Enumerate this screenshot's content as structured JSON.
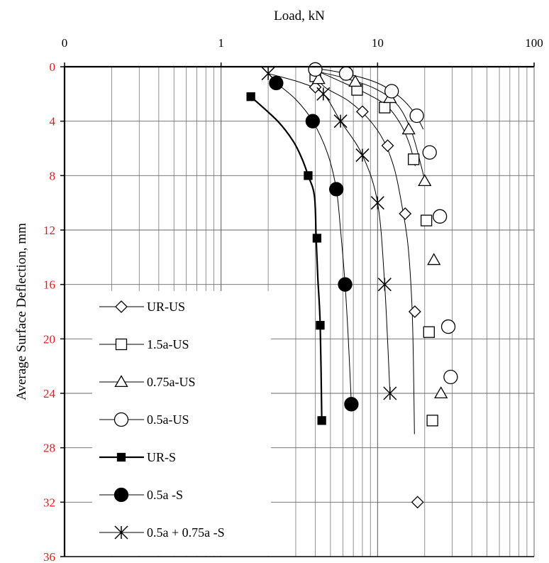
{
  "chart_data": {
    "type": "scatter",
    "title": "",
    "xlabel": "Load, kN",
    "ylabel": "Average Surface Deflection, mm",
    "x_scale": "log",
    "xlim": [
      0.1,
      100
    ],
    "ylim": [
      0,
      36
    ],
    "y_inverted": true,
    "x_position": "top",
    "x_tick_labels": [
      "0",
      "1",
      "10",
      "100"
    ],
    "y_ticks": [
      0,
      4,
      8,
      12,
      16,
      20,
      24,
      28,
      32,
      36
    ],
    "y_tick_color": "#e8141c",
    "grid": true,
    "legend_position": "bottom-left",
    "series": [
      {
        "name": "UR-US",
        "marker": "diamond",
        "filled": false,
        "line": "thin",
        "points": [
          [
            4.0,
            1.5
          ],
          [
            8.0,
            3.3
          ],
          [
            11.6,
            5.8
          ],
          [
            15.0,
            10.8
          ],
          [
            17.3,
            18.0
          ],
          [
            18.0,
            32.0
          ]
        ],
        "curve": [
          [
            3.9,
            0.5
          ],
          [
            4.6,
            1.5
          ],
          [
            6.5,
            2.5
          ],
          [
            8.7,
            3.8
          ],
          [
            10.9,
            5.4
          ],
          [
            12.8,
            7.5
          ],
          [
            14.2,
            10.0
          ],
          [
            15.6,
            13.0
          ],
          [
            16.5,
            17.0
          ],
          [
            16.9,
            21.0
          ],
          [
            17.2,
            27.0
          ]
        ]
      },
      {
        "name": "1.5a-US",
        "marker": "square",
        "filled": false,
        "line": "thin",
        "points": [
          [
            4.0,
            0.7
          ],
          [
            7.4,
            1.7
          ],
          [
            11.1,
            3.0
          ],
          [
            17.0,
            6.8
          ],
          [
            20.5,
            11.3
          ],
          [
            21.3,
            19.5
          ],
          [
            22.4,
            26.0
          ]
        ],
        "curve": [
          [
            3.9,
            0.2
          ],
          [
            5.6,
            1.0
          ],
          [
            8.6,
            2.0
          ],
          [
            11.5,
            2.9
          ],
          [
            14.0,
            4.2
          ],
          [
            16.0,
            5.7
          ],
          [
            17.4,
            7.3
          ]
        ]
      },
      {
        "name": "0.75a-US",
        "marker": "triangle",
        "filled": false,
        "line": "thin",
        "points": [
          [
            4.2,
            0.9
          ],
          [
            7.2,
            1.1
          ],
          [
            12.0,
            2.3
          ],
          [
            15.8,
            4.6
          ],
          [
            20.0,
            8.4
          ],
          [
            22.9,
            14.2
          ],
          [
            25.4,
            24.0
          ]
        ],
        "curve": [
          [
            3.9,
            0.3
          ],
          [
            6.0,
            0.8
          ],
          [
            9.6,
            1.6
          ],
          [
            13.4,
            2.8
          ],
          [
            16.5,
            4.8
          ],
          [
            19.0,
            7.3
          ],
          [
            20.3,
            8.7
          ]
        ]
      },
      {
        "name": "0.5a-US",
        "marker": "circle",
        "filled": false,
        "line": "thin",
        "points": [
          [
            4.0,
            0.2
          ],
          [
            6.3,
            0.5
          ],
          [
            12.3,
            1.8
          ],
          [
            17.8,
            3.6
          ],
          [
            21.5,
            6.3
          ],
          [
            25.0,
            11.0
          ],
          [
            28.3,
            19.1
          ],
          [
            29.3,
            22.8
          ]
        ],
        "curve": [
          [
            3.9,
            0.1
          ],
          [
            6.3,
            0.5
          ],
          [
            10.0,
            1.2
          ],
          [
            13.8,
            2.2
          ],
          [
            17.2,
            3.4
          ],
          [
            19.6,
            4.6
          ]
        ]
      },
      {
        "name": "UR-S",
        "marker": "square",
        "filled": true,
        "line": "thick",
        "points": [
          [
            1.55,
            2.2
          ],
          [
            3.6,
            8.0
          ],
          [
            4.1,
            12.6
          ],
          [
            4.3,
            19.0
          ],
          [
            4.4,
            26.0
          ]
        ],
        "curve": [
          [
            1.55,
            2.2
          ],
          [
            2.3,
            4.0
          ],
          [
            2.9,
            5.5
          ],
          [
            3.3,
            6.8
          ],
          [
            3.6,
            8.0
          ],
          [
            3.95,
            9.5
          ],
          [
            4.05,
            12.6
          ],
          [
            4.15,
            15.5
          ],
          [
            4.3,
            19.0
          ],
          [
            4.4,
            26.0
          ]
        ]
      },
      {
        "name": "0.5a -S",
        "marker": "circle",
        "filled": true,
        "line": "thin",
        "points": [
          [
            2.25,
            1.2
          ],
          [
            3.85,
            4.0
          ],
          [
            5.45,
            9.0
          ],
          [
            6.2,
            16.0
          ],
          [
            6.8,
            24.8
          ]
        ],
        "curve": [
          [
            2.25,
            1.2
          ],
          [
            3.0,
            2.4
          ],
          [
            3.85,
            4.0
          ],
          [
            4.8,
            6.4
          ],
          [
            5.45,
            9.0
          ],
          [
            5.8,
            12.0
          ],
          [
            6.2,
            16.0
          ],
          [
            6.5,
            20.0
          ],
          [
            6.8,
            24.8
          ]
        ]
      },
      {
        "name": "0.5a + 0.75a -S",
        "marker": "asterisk",
        "filled": false,
        "line": "thin",
        "points": [
          [
            2.0,
            0.5
          ],
          [
            4.5,
            2.0
          ],
          [
            5.8,
            4.0
          ],
          [
            8.0,
            6.5
          ],
          [
            10.0,
            10.0
          ],
          [
            11.1,
            16.0
          ],
          [
            12.0,
            24.0
          ]
        ],
        "curve": [
          [
            2.0,
            0.5
          ],
          [
            3.3,
            1.2
          ],
          [
            4.5,
            2.0
          ],
          [
            5.8,
            4.0
          ],
          [
            8.0,
            6.5
          ],
          [
            10.0,
            10.0
          ],
          [
            11.1,
            16.0
          ],
          [
            12.0,
            24.0
          ]
        ]
      }
    ]
  }
}
